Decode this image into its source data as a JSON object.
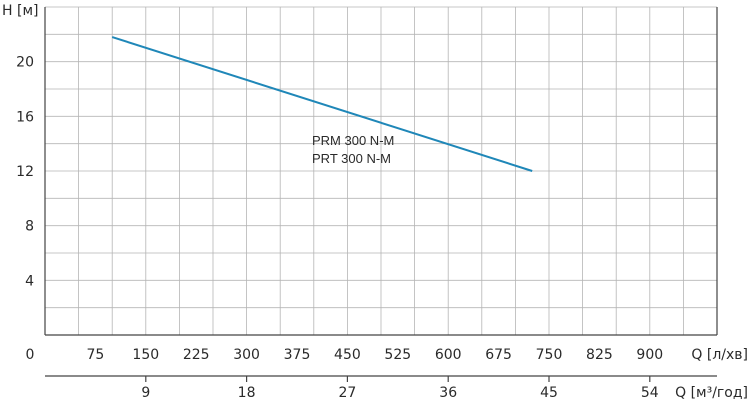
{
  "chart_data": {
    "type": "line",
    "title": "",
    "ylabel": "H [м]",
    "xlabel": "Q [л/хв]",
    "x2label": "Q [м³/год]",
    "ylim": [
      0,
      24
    ],
    "xlim": [
      0,
      1000
    ],
    "x2lim": [
      0,
      60
    ],
    "yticks": [
      4,
      8,
      12,
      16,
      20
    ],
    "ytick_labels": [
      "4",
      "8",
      "12",
      "16",
      "20"
    ],
    "xticks": [
      0,
      75,
      150,
      225,
      300,
      375,
      450,
      525,
      600,
      675,
      750,
      825,
      900
    ],
    "xtick_labels": [
      "0",
      "75",
      "150",
      "225",
      "300",
      "375",
      "450",
      "525",
      "600",
      "675",
      "750",
      "825",
      "900"
    ],
    "x2ticks": [
      9,
      18,
      27,
      36,
      45,
      54
    ],
    "x2tick_labels": [
      "9",
      "18",
      "27",
      "36",
      "45",
      "54"
    ],
    "grid": true,
    "series": [
      {
        "name": "PRM 300 N-M",
        "name2": "PRT 300 N-M",
        "color": "#1f87b8",
        "x": [
          100,
          725
        ],
        "y": [
          21.8,
          12.0
        ]
      }
    ],
    "annotations": [
      {
        "text": "PRM 300 N-M",
        "x": 450,
        "y": 14.5
      },
      {
        "text": "PRT 300 N-M",
        "x": 450,
        "y": 13.3
      }
    ]
  }
}
